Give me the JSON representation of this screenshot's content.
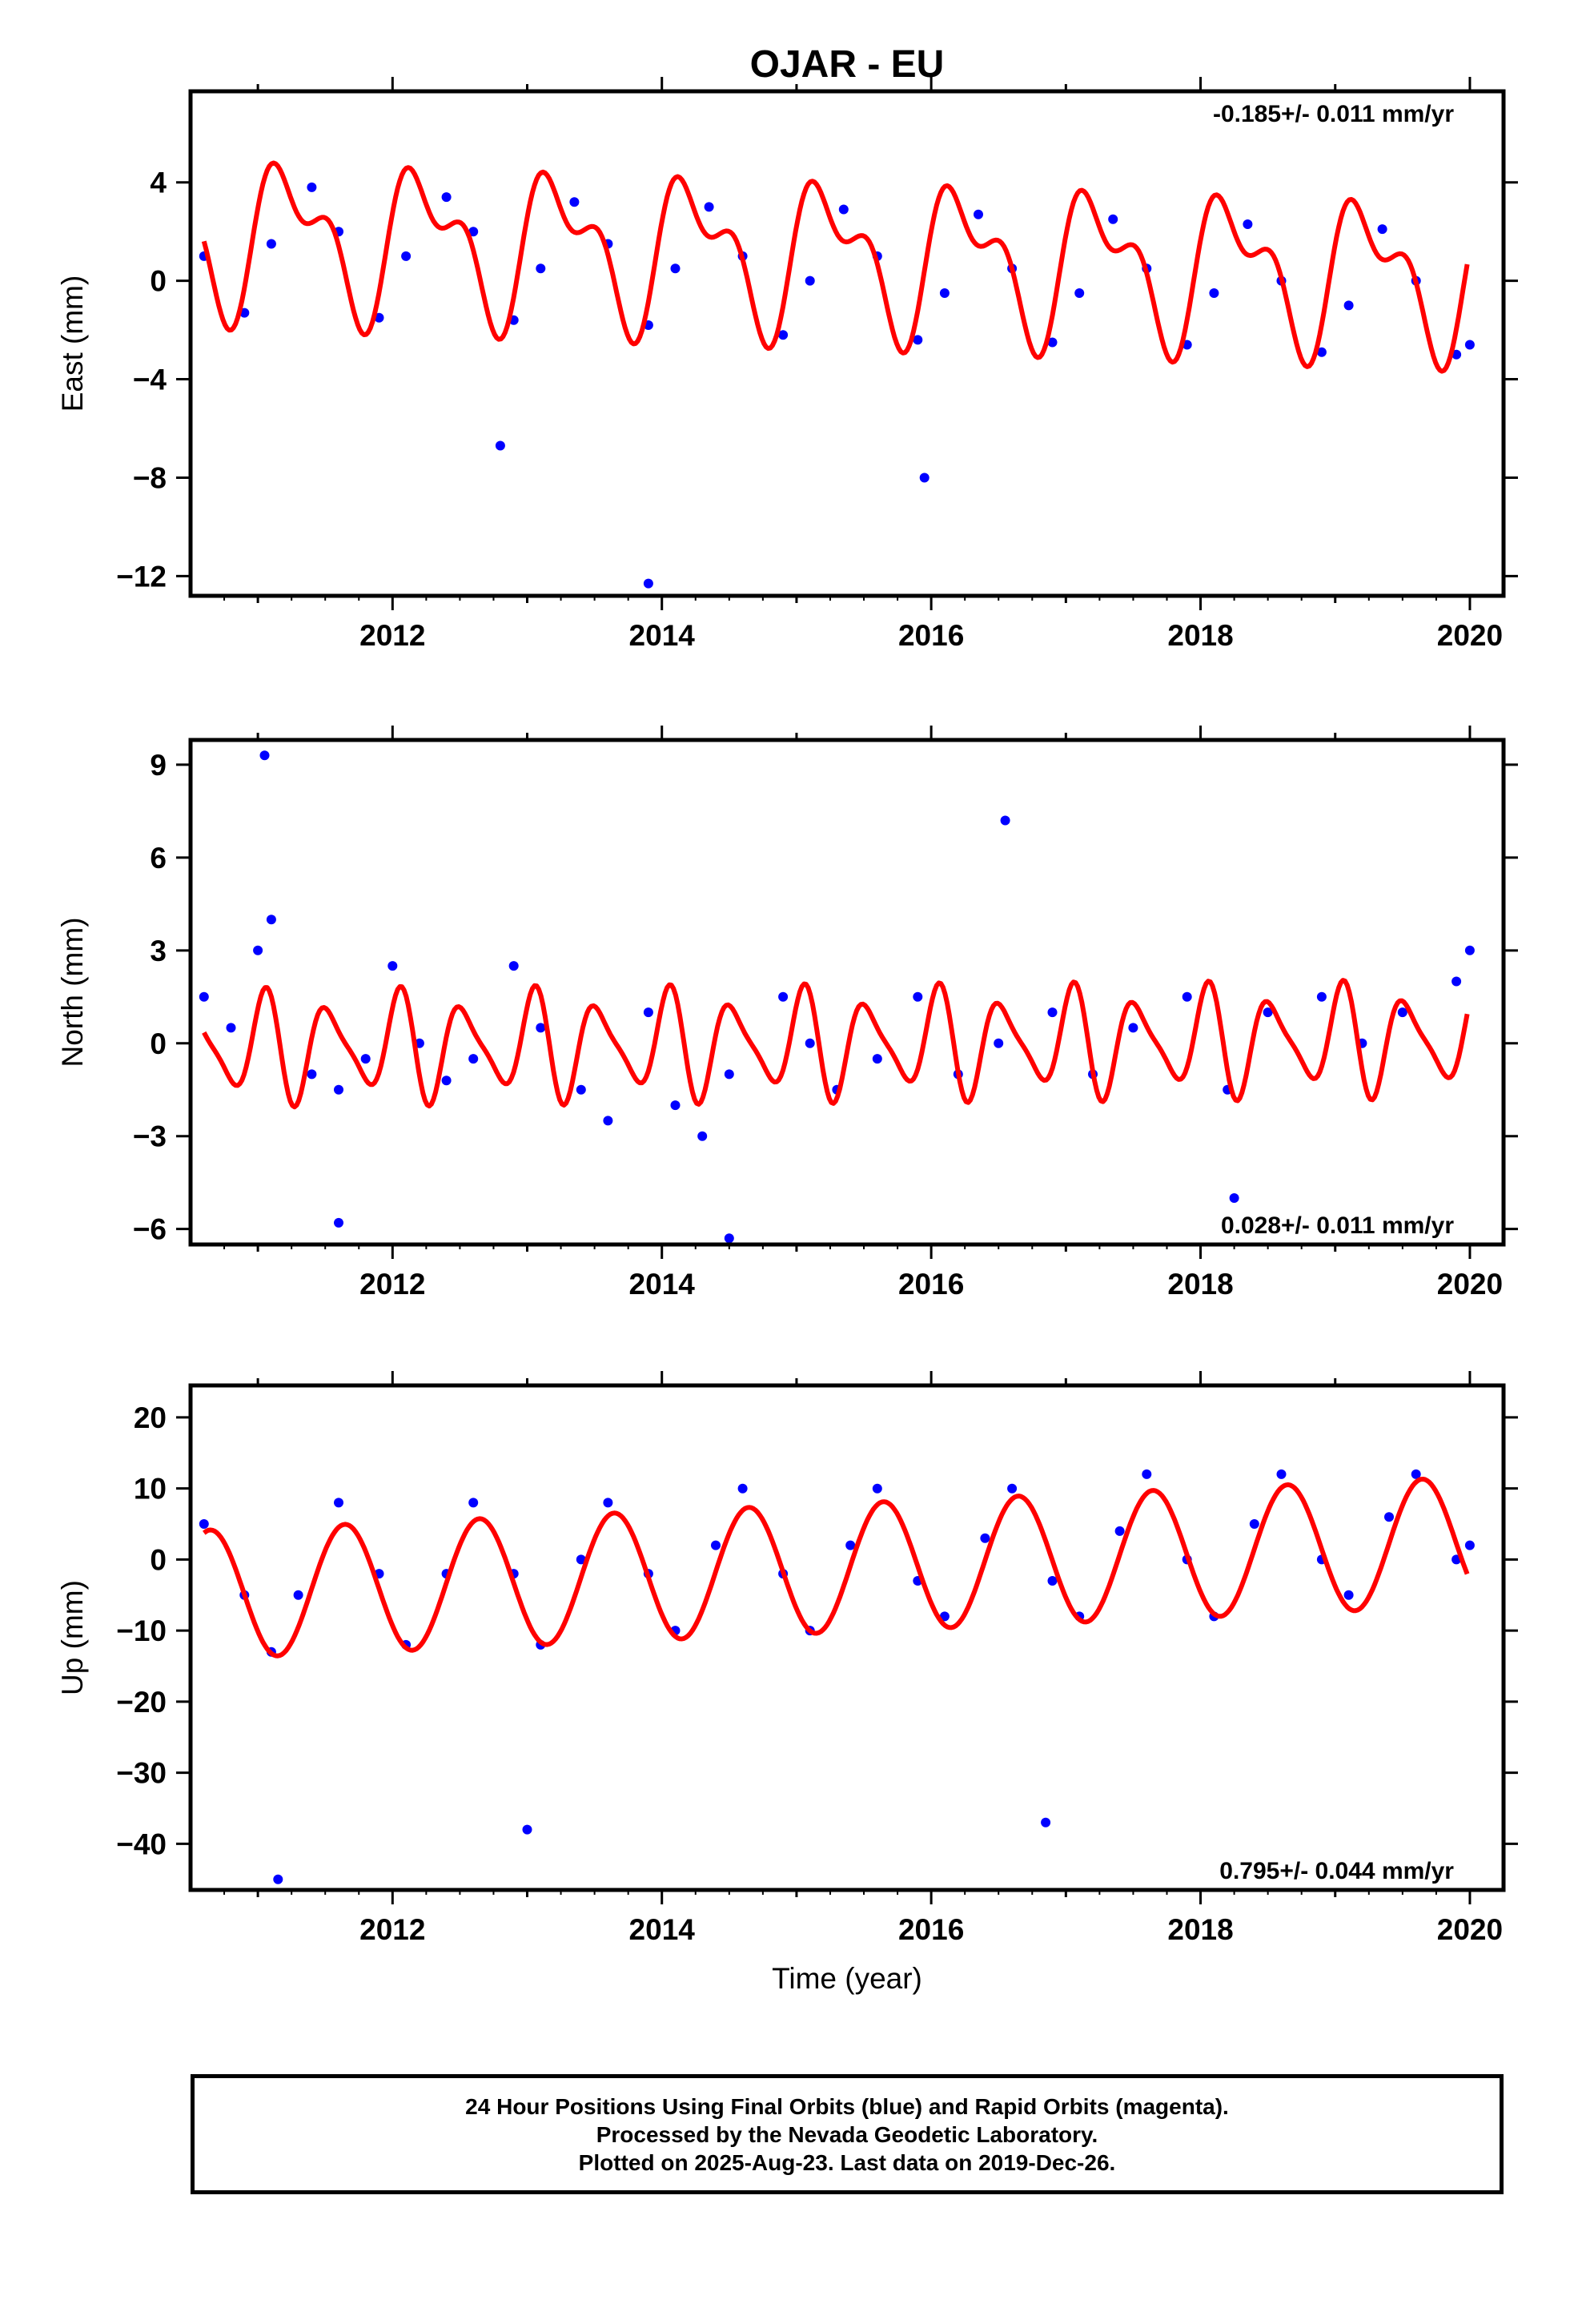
{
  "title": "OJAR - EU",
  "xlabel": "Time (year)",
  "footer": {
    "line1": "24 Hour Positions Using Final Orbits (blue) and Rapid Orbits (magenta).",
    "line2": "Processed by the Nevada Geodetic Laboratory.",
    "line3": "Plotted on 2025-Aug-23. Last data on 2019-Dec-26."
  },
  "colors": {
    "points": "#0000ff",
    "fit": "#ff0000",
    "axis": "#000000"
  },
  "chart_data": [
    {
      "type": "scatter",
      "ylabel": "East (mm)",
      "rate": "-0.185+/- 0.011 mm/yr",
      "xlim": [
        2010.5,
        2020.25
      ],
      "ylim": [
        -12.8,
        7.7
      ],
      "xticks": [
        2012,
        2014,
        2016,
        2018,
        2020
      ],
      "yticks": [
        4,
        0,
        -4,
        -8,
        -12
      ],
      "series": [
        {
          "values": [
            [
              2010.6,
              1.0
            ],
            [
              2010.9,
              -1.3
            ],
            [
              2011.1,
              1.5
            ],
            [
              2011.4,
              3.8
            ],
            [
              2011.6,
              2.0
            ],
            [
              2011.9,
              -1.5
            ],
            [
              2012.1,
              1.0
            ],
            [
              2012.4,
              3.4
            ],
            [
              2012.6,
              2.0
            ],
            [
              2012.9,
              -1.6
            ],
            [
              2013.1,
              0.5
            ],
            [
              2013.35,
              3.2
            ],
            [
              2013.6,
              1.5
            ],
            [
              2013.9,
              -1.8
            ],
            [
              2014.1,
              0.5
            ],
            [
              2014.35,
              3.0
            ],
            [
              2014.6,
              1.0
            ],
            [
              2014.9,
              -2.2
            ],
            [
              2015.1,
              0.0
            ],
            [
              2015.35,
              2.9
            ],
            [
              2015.6,
              1.0
            ],
            [
              2015.9,
              -2.4
            ],
            [
              2016.1,
              -0.5
            ],
            [
              2016.35,
              2.7
            ],
            [
              2016.6,
              0.5
            ],
            [
              2016.9,
              -2.5
            ],
            [
              2017.1,
              -0.5
            ],
            [
              2017.35,
              2.5
            ],
            [
              2017.6,
              0.5
            ],
            [
              2017.9,
              -2.6
            ],
            [
              2018.1,
              -0.5
            ],
            [
              2018.35,
              2.3
            ],
            [
              2018.6,
              0.0
            ],
            [
              2018.9,
              -2.9
            ],
            [
              2019.1,
              -1.0
            ],
            [
              2019.35,
              2.1
            ],
            [
              2019.6,
              0.0
            ],
            [
              2019.9,
              -3.0
            ],
            [
              2020.0,
              -2.6
            ],
            [
              2013.9,
              -12.3
            ],
            [
              2015.95,
              -8.0
            ],
            [
              2012.8,
              -6.7
            ]
          ]
        }
      ],
      "fit": {
        "type": "line",
        "offset": 1.0,
        "trend": -0.185,
        "t0": 2015.3,
        "annual": [
          0.0,
          2.45,
          0.18
        ],
        "semiannual": [
          0.0,
          0.45,
          1.2
        ]
      }
    },
    {
      "type": "scatter",
      "ylabel": "North (mm)",
      "rate": "0.028+/- 0.011 mm/yr",
      "xlim": [
        2010.5,
        2020.25
      ],
      "ylim": [
        -6.5,
        9.8
      ],
      "xticks": [
        2012,
        2014,
        2016,
        2018,
        2020
      ],
      "yticks": [
        9,
        6,
        3,
        0,
        -3,
        -6
      ],
      "series": [
        {
          "values": [
            [
              2010.6,
              1.5
            ],
            [
              2010.8,
              0.5
            ],
            [
              2011.0,
              3.0
            ],
            [
              2011.05,
              9.3
            ],
            [
              2011.1,
              4.0
            ],
            [
              2011.4,
              -1.0
            ],
            [
              2011.6,
              -1.5
            ],
            [
              2011.8,
              -0.5
            ],
            [
              2012.0,
              2.5
            ],
            [
              2012.2,
              0.0
            ],
            [
              2012.4,
              -1.2
            ],
            [
              2012.6,
              -0.5
            ],
            [
              2012.9,
              2.5
            ],
            [
              2013.1,
              0.5
            ],
            [
              2013.4,
              -1.5
            ],
            [
              2013.6,
              -2.5
            ],
            [
              2013.9,
              1.0
            ],
            [
              2014.1,
              -2.0
            ],
            [
              2014.3,
              -3.0
            ],
            [
              2014.5,
              -1.0
            ],
            [
              2014.9,
              1.5
            ],
            [
              2015.1,
              0.0
            ],
            [
              2015.3,
              -1.5
            ],
            [
              2015.6,
              -0.5
            ],
            [
              2015.9,
              1.5
            ],
            [
              2016.2,
              -1.0
            ],
            [
              2016.5,
              0.0
            ],
            [
              2016.55,
              7.2
            ],
            [
              2016.9,
              1.0
            ],
            [
              2017.2,
              -1.0
            ],
            [
              2017.5,
              0.5
            ],
            [
              2017.9,
              1.5
            ],
            [
              2018.2,
              -1.5
            ],
            [
              2018.25,
              -5.0
            ],
            [
              2018.5,
              1.0
            ],
            [
              2018.9,
              1.5
            ],
            [
              2019.2,
              0.0
            ],
            [
              2019.5,
              1.0
            ],
            [
              2019.9,
              2.0
            ],
            [
              2020.0,
              3.0
            ],
            [
              2014.5,
              -6.3
            ],
            [
              2011.6,
              -5.8
            ]
          ]
        }
      ],
      "fit": {
        "type": "line",
        "offset": 0.0,
        "trend": 0.028,
        "t0": 2015.3,
        "annual": [
          0.0,
          0.0,
          0.0
        ],
        "semiannual": [
          1.25,
          0.7,
          0.0
        ],
        "terannual": [
          0.0,
          0.6,
          0.0
        ]
      }
    },
    {
      "type": "scatter",
      "ylabel": "Up (mm)",
      "rate": "0.795+/- 0.044 mm/yr",
      "xlim": [
        2010.5,
        2020.25
      ],
      "ylim": [
        -46.5,
        24.5
      ],
      "xticks": [
        2012,
        2014,
        2016,
        2018,
        2020
      ],
      "yticks": [
        20,
        10,
        0,
        -10,
        -20,
        -30,
        -40
      ],
      "series": [
        {
          "values": [
            [
              2010.6,
              5.0
            ],
            [
              2010.9,
              -5.0
            ],
            [
              2011.1,
              -13.0
            ],
            [
              2011.15,
              -45.0
            ],
            [
              2011.3,
              -5.0
            ],
            [
              2011.6,
              8.0
            ],
            [
              2011.9,
              -2.0
            ],
            [
              2012.1,
              -12.0
            ],
            [
              2012.4,
              -2.0
            ],
            [
              2012.6,
              8.0
            ],
            [
              2012.9,
              -2.0
            ],
            [
              2013.1,
              -12.0
            ],
            [
              2013.0,
              -38.0
            ],
            [
              2013.4,
              0.0
            ],
            [
              2013.6,
              8.0
            ],
            [
              2013.9,
              -2.0
            ],
            [
              2014.1,
              -10.0
            ],
            [
              2014.4,
              2.0
            ],
            [
              2014.6,
              10.0
            ],
            [
              2014.9,
              -2.0
            ],
            [
              2015.1,
              -10.0
            ],
            [
              2015.4,
              2.0
            ],
            [
              2015.6,
              10.0
            ],
            [
              2015.9,
              -3.0
            ],
            [
              2016.1,
              -8.0
            ],
            [
              2016.4,
              3.0
            ],
            [
              2016.6,
              10.0
            ],
            [
              2016.85,
              -37.0
            ],
            [
              2016.9,
              -3.0
            ],
            [
              2017.1,
              -8.0
            ],
            [
              2017.4,
              4.0
            ],
            [
              2017.6,
              12.0
            ],
            [
              2017.9,
              0.0
            ],
            [
              2018.1,
              -8.0
            ],
            [
              2018.4,
              5.0
            ],
            [
              2018.6,
              12.0
            ],
            [
              2018.9,
              0.0
            ],
            [
              2019.1,
              -5.0
            ],
            [
              2019.4,
              6.0
            ],
            [
              2019.6,
              12.0
            ],
            [
              2019.9,
              0.0
            ],
            [
              2020.0,
              2.0
            ]
          ]
        }
      ],
      "fit": {
        "type": "line",
        "offset": -1.2,
        "trend": 0.795,
        "t0": 2015.3,
        "annual": [
          -5.5,
          -7.2,
          0.0
        ],
        "semiannual": [
          0.0,
          0.0,
          0.0
        ]
      }
    }
  ]
}
